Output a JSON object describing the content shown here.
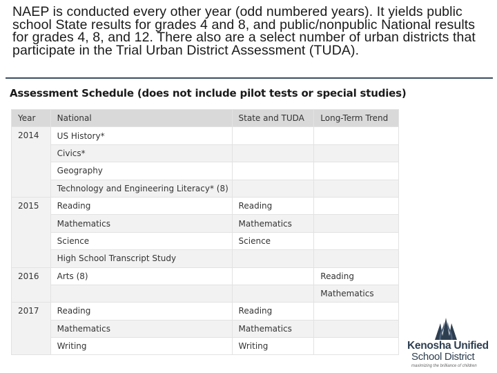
{
  "intro_text": "NAEP is conducted every other year (odd numbered years). It yields public school State results for grades 4 and 8, and public/nonpublic National results for grades 4, 8, and 12. There also are a select number of urban districts that participate in the Trial Urban District Assessment (TUDA).",
  "schedule": {
    "title": "Assessment Schedule (does not include pilot tests or special studies)",
    "headers": [
      "Year",
      "National",
      "State and TUDA",
      "Long-Term Trend"
    ],
    "rows": [
      {
        "year": "2014",
        "national": "US History*",
        "state": "",
        "ltt": ""
      },
      {
        "year": "",
        "national": "Civics*",
        "state": "",
        "ltt": ""
      },
      {
        "year": "",
        "national": "Geography",
        "state": "",
        "ltt": ""
      },
      {
        "year": "",
        "national": "Technology and Engineering Literacy* (8)",
        "state": "",
        "ltt": ""
      },
      {
        "year": "2015",
        "national": "Reading",
        "state": "Reading",
        "ltt": ""
      },
      {
        "year": "",
        "national": "Mathematics",
        "state": "Mathematics",
        "ltt": ""
      },
      {
        "year": "",
        "national": "Science",
        "state": "Science",
        "ltt": ""
      },
      {
        "year": "",
        "national": "High School Transcript Study",
        "state": "",
        "ltt": ""
      },
      {
        "year": "2016",
        "national": "Arts (8)",
        "state": "",
        "ltt": "Reading"
      },
      {
        "year": "",
        "national": "",
        "state": "",
        "ltt": "Mathematics"
      },
      {
        "year": "2017",
        "national": "Reading",
        "state": "Reading",
        "ltt": ""
      },
      {
        "year": "",
        "national": "Mathematics",
        "state": "Mathematics",
        "ltt": ""
      },
      {
        "year": "",
        "national": "Writing",
        "state": "Writing",
        "ltt": ""
      }
    ]
  },
  "logo": {
    "name": "Kenosha Unified",
    "sub": "School District",
    "tagline": "maximizing the brilliance of children"
  }
}
